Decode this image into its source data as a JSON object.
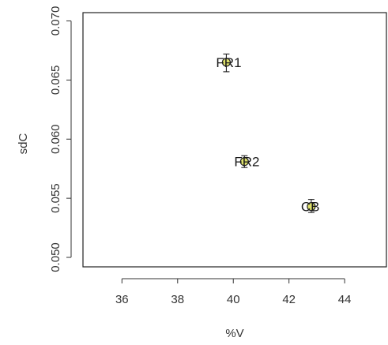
{
  "chart_data": {
    "type": "scatter",
    "xlabel": "%V",
    "ylabel": "sdC",
    "xlim": [
      34.6,
      45.5
    ],
    "ylim": [
      0.0492,
      0.0707
    ],
    "x_ticks": [
      {
        "value": 36,
        "label": "36"
      },
      {
        "value": 38,
        "label": "38"
      },
      {
        "value": 40,
        "label": "40"
      },
      {
        "value": 42,
        "label": "42"
      },
      {
        "value": 44,
        "label": "44"
      }
    ],
    "y_ticks": [
      {
        "value": 0.05,
        "label": "0.050"
      },
      {
        "value": 0.055,
        "label": "0.055"
      },
      {
        "value": 0.06,
        "label": "0.060"
      },
      {
        "value": 0.065,
        "label": "0.065"
      },
      {
        "value": 0.07,
        "label": "0.070"
      }
    ],
    "points": [
      {
        "label": "FR1",
        "x": 39.75,
        "y": 0.0665,
        "y_low": 0.0657,
        "y_high": 0.0672
      },
      {
        "label": "FR2",
        "x": 40.4,
        "y": 0.0581,
        "y_low": 0.0576,
        "y_high": 0.0586
      },
      {
        "label": "CB",
        "x": 42.8,
        "y": 0.0543,
        "y_low": 0.0538,
        "y_high": 0.0549
      }
    ],
    "marker_color": "#dde06a",
    "grid": false,
    "legend": "none"
  }
}
